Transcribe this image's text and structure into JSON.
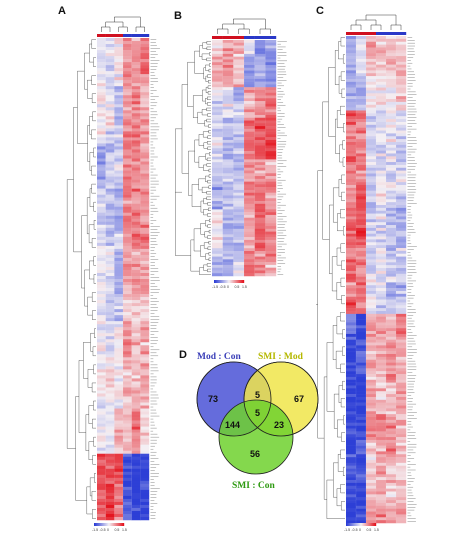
{
  "panels": {
    "a": "A",
    "b": "B",
    "c": "C",
    "d": "D"
  },
  "venn": {
    "sets": [
      {
        "label": "Mod : Con",
        "color": "#4a52d6",
        "text_color": "#3b3fb8"
      },
      {
        "label": "SMI : Mod",
        "color": "#f0e54a",
        "text_color": "#b5b800"
      },
      {
        "label": "SMI : Con",
        "color": "#6ed12e",
        "text_color": "#2e9a12"
      }
    ],
    "regions": {
      "mod_only": "73",
      "smi_mod_only": "67",
      "smi_con_only": "56",
      "mod_and_smi_mod": "5",
      "mod_and_smi_con": "144",
      "smi_mod_and_smi_con": "23",
      "all_three": "5"
    }
  },
  "heatmaps": {
    "palette": {
      "low": "#2d3fd6",
      "mid": "#f4f0f4",
      "high": "#e4151f"
    },
    "scale_labels": [
      "-1.5",
      "-0.5",
      "0",
      "0.5",
      "1.5"
    ]
  }
}
